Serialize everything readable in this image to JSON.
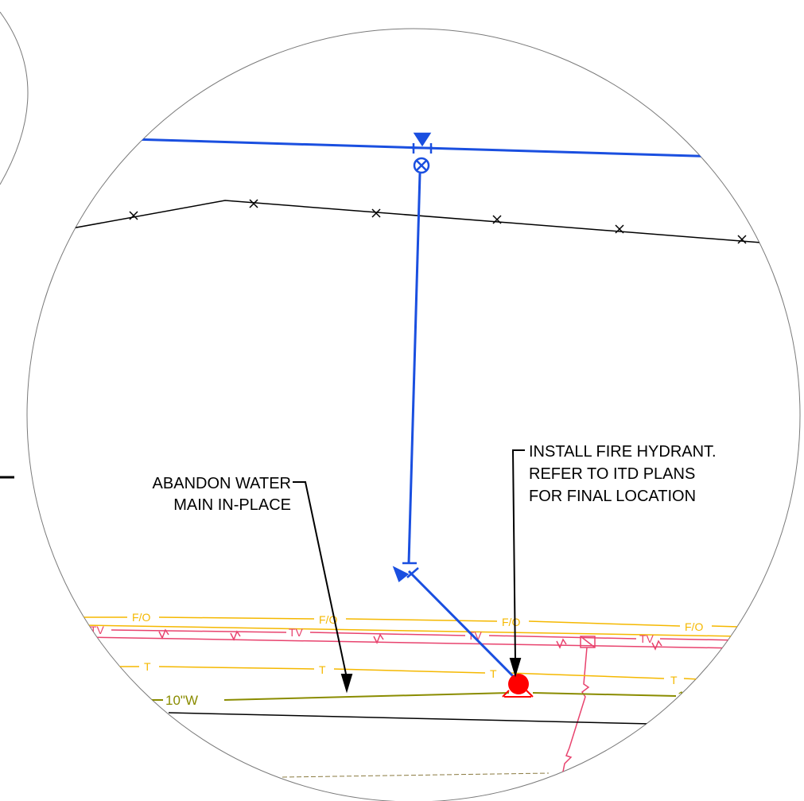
{
  "callouts": {
    "abandon": {
      "line1": "ABANDON WATER",
      "line2": "MAIN IN-PLACE"
    },
    "hydrant": {
      "line1": "INSTALL FIRE HYDRANT.",
      "line2": "REFER TO ITD PLANS",
      "line3": "FOR FINAL LOCATION"
    }
  },
  "utility_labels": {
    "fiber": "F/O",
    "tv": "TV",
    "telephone": "T",
    "water": "10\"W",
    "water_partial": "1"
  },
  "colors": {
    "proposed_water": "#1a4fe0",
    "hydrant": "#ff0000",
    "fiber_telephone": "#f5b800",
    "tv": "#e8436e",
    "existing_water": "#8a8c00",
    "fence": "#000000",
    "circle": "#7a7a7a"
  }
}
